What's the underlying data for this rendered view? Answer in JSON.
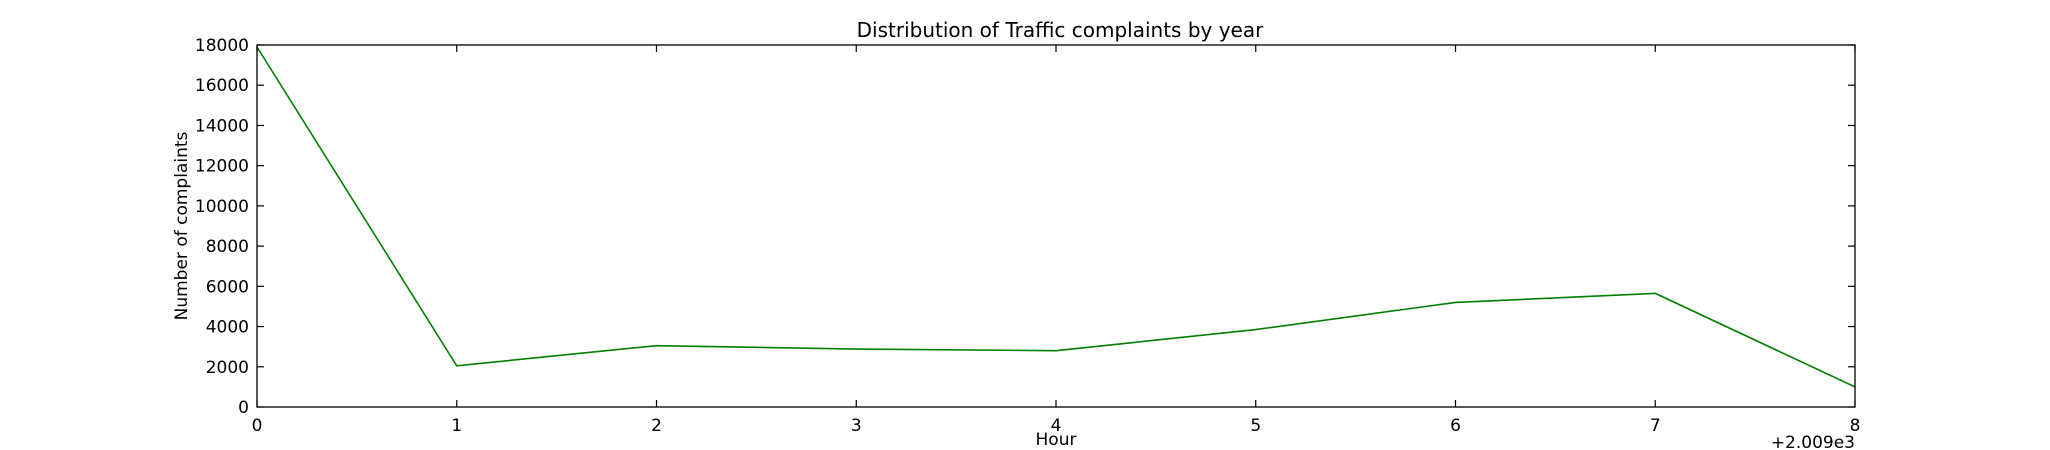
{
  "chart_data": {
    "type": "line",
    "title": "Distribution of  Traffic complaints by year",
    "xlabel": "Hour",
    "ylabel": "Number of complaints",
    "x_offset_label": "+2.009e3",
    "x": [
      0,
      1,
      2,
      3,
      4,
      5,
      6,
      7,
      8
    ],
    "x_tick_labels": [
      "0",
      "1",
      "2",
      "3",
      "4",
      "5",
      "6",
      "7",
      "8"
    ],
    "y_tick_values": [
      0,
      2000,
      4000,
      6000,
      8000,
      10000,
      12000,
      14000,
      16000,
      18000
    ],
    "y_tick_labels": [
      "0",
      "2000",
      "4000",
      "6000",
      "8000",
      "10000",
      "12000",
      "14000",
      "16000",
      "18000"
    ],
    "xlim": [
      0,
      8
    ],
    "ylim": [
      0,
      18000
    ],
    "grid": false,
    "series": [
      {
        "color": "#008000",
        "values": [
          17900,
          2050,
          3050,
          2880,
          2800,
          3850,
          5200,
          5650,
          1000
        ]
      }
    ]
  }
}
